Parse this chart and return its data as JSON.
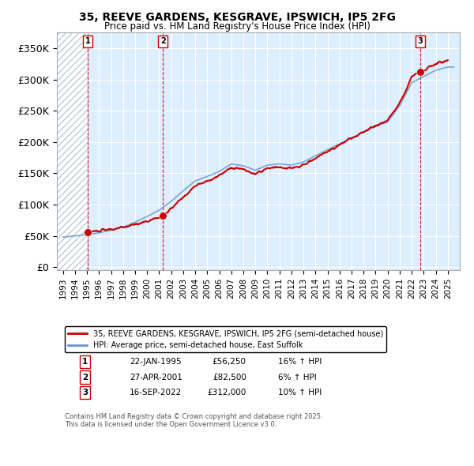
{
  "title1": "35, REEVE GARDENS, KESGRAVE, IPSWICH, IP5 2FG",
  "title2": "Price paid vs. HM Land Registry's House Price Index (HPI)",
  "ylabel": "",
  "background_color": "#ffffff",
  "plot_bg_color": "#ddeeff",
  "grid_color": "#ffffff",
  "hatch_color": "#c0c8d8",
  "house_color": "#cc0000",
  "hpi_color": "#6699cc",
  "sale_marker_color": "#cc0000",
  "dashed_line_color": "#cc0000",
  "transactions": [
    {
      "date_num": 1995.07,
      "price": 56250,
      "label": "1",
      "pct": "16% ↑ HPI",
      "date_str": "22-JAN-1995"
    },
    {
      "date_num": 2001.32,
      "price": 82500,
      "label": "2",
      "pct": "6% ↑ HPI",
      "date_str": "27-APR-2001"
    },
    {
      "date_num": 2022.71,
      "price": 312000,
      "label": "3",
      "pct": "10% ↑ HPI",
      "date_str": "16-SEP-2022"
    }
  ],
  "legend_house": "35, REEVE GARDENS, KESGRAVE, IPSWICH, IP5 2FG (semi-detached house)",
  "legend_hpi": "HPI: Average price, semi-detached house, East Suffolk",
  "footnote": "Contains HM Land Registry data © Crown copyright and database right 2025.\nThis data is licensed under the Open Government Licence v3.0.",
  "yticks": [
    0,
    50000,
    100000,
    150000,
    200000,
    250000,
    300000,
    350000
  ],
  "ylim": [
    -5000,
    375000
  ],
  "xlim": [
    1992.5,
    2026.0
  ],
  "xticks": [
    1993,
    1994,
    1995,
    1996,
    1997,
    1998,
    1999,
    2000,
    2001,
    2002,
    2003,
    2004,
    2005,
    2006,
    2007,
    2008,
    2009,
    2010,
    2011,
    2012,
    2013,
    2014,
    2015,
    2016,
    2017,
    2018,
    2019,
    2020,
    2021,
    2022,
    2023,
    2024,
    2025
  ]
}
